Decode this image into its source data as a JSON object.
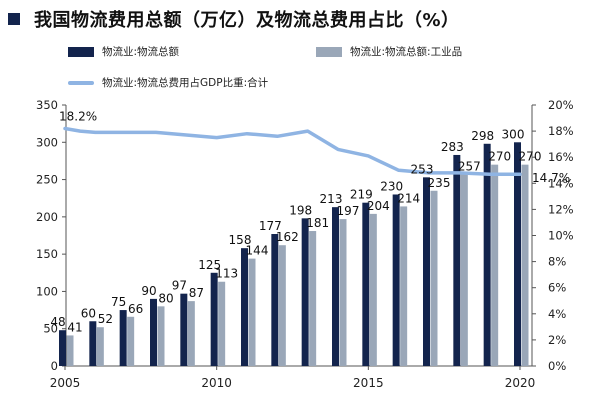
{
  "title": "我国物流费用总额（万亿）及物流总费用占比（%）",
  "colors": {
    "title_marker": "#13244d",
    "total": "#13244d",
    "industrial": "#9aa7b8",
    "ratio_line": "#8fb4e3"
  },
  "legend": {
    "total": "物流业:物流总额",
    "industrial": "物流业:物流总额:工业品",
    "ratio": "物流业:物流总费用占GDP比重:合计"
  },
  "chart_data": {
    "type": "bar",
    "x": [
      2005,
      2006,
      2007,
      2008,
      2009,
      2010,
      2011,
      2012,
      2013,
      2014,
      2015,
      2016,
      2017,
      2018,
      2019,
      2020
    ],
    "xticks": [
      "2005",
      "2010",
      "2015",
      "2020"
    ],
    "xlim": [
      2005,
      2020
    ],
    "ylim": [
      0,
      350
    ],
    "yticks": [
      "0",
      "50",
      "100",
      "150",
      "200",
      "250",
      "300",
      "350"
    ],
    "y2lim": [
      0,
      20
    ],
    "y2ticks": [
      "0%",
      "2%",
      "4%",
      "6%",
      "8%",
      "10%",
      "12%",
      "14%",
      "16%",
      "18%",
      "20%"
    ],
    "series": [
      {
        "name": "物流业:物流总额",
        "kind": "bar",
        "axis": "left",
        "values": [
          48,
          60,
          75,
          90,
          97,
          125,
          158,
          177,
          198,
          213,
          219,
          230,
          253,
          283,
          298,
          300
        ],
        "labels": [
          "48",
          "60",
          "75",
          "90",
          "97",
          "125",
          "158",
          "177",
          "198",
          "213",
          "219",
          "230",
          "253",
          "283",
          "298",
          "300"
        ]
      },
      {
        "name": "物流业:物流总额:工业品",
        "kind": "bar",
        "axis": "left",
        "values": [
          41,
          52,
          66,
          80,
          87,
          113,
          144,
          162,
          181,
          197,
          204,
          214,
          235,
          257,
          270,
          270
        ],
        "labels": [
          "41",
          "52",
          "66",
          "80",
          "87",
          "113",
          "144",
          "162",
          "181",
          "197",
          "204",
          "214",
          "235",
          "257",
          "270",
          "270"
        ]
      },
      {
        "name": "物流业:物流总费用占GDP比重:合计",
        "kind": "line",
        "axis": "right",
        "x": [
          2005,
          2005.5,
          2006,
          2007,
          2008,
          2009,
          2010,
          2011,
          2012,
          2013,
          2014,
          2015,
          2016,
          2017,
          2018,
          2019,
          2020
        ],
        "values": [
          18.2,
          18.0,
          17.9,
          17.9,
          17.9,
          17.7,
          17.5,
          17.8,
          17.6,
          18.0,
          16.6,
          16.1,
          15.0,
          14.8,
          14.8,
          14.7,
          14.7
        ]
      }
    ],
    "annotations": [
      "18.2%",
      "14.7%"
    ]
  }
}
